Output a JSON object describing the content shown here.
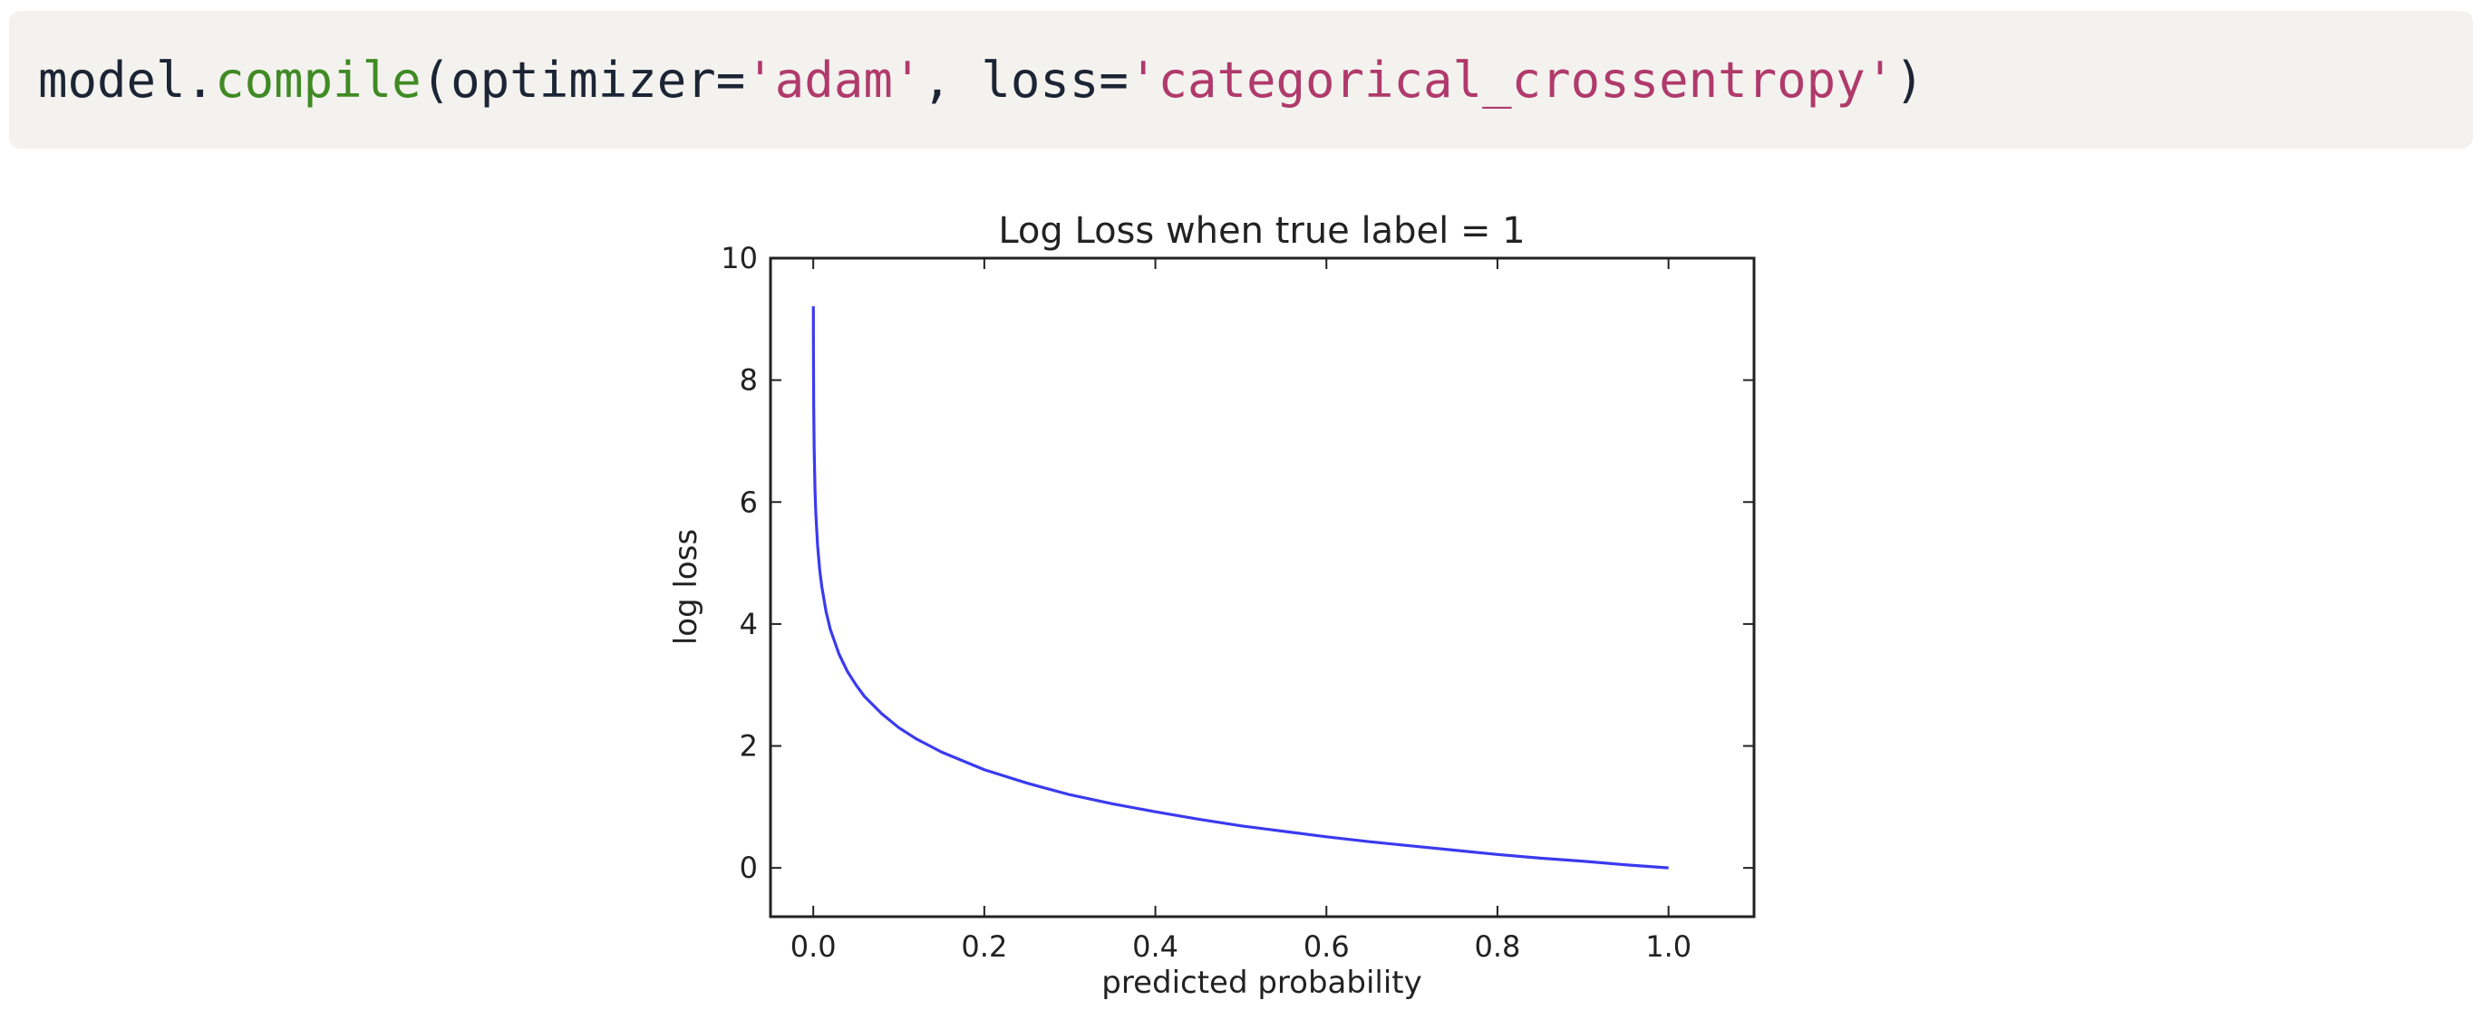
{
  "code": {
    "tokens": [
      {
        "text": "model.",
        "kind": "plain"
      },
      {
        "text": "compile",
        "kind": "fn"
      },
      {
        "text": "(optimizer=",
        "kind": "plain"
      },
      {
        "text": "'adam'",
        "kind": "str"
      },
      {
        "text": ", loss=",
        "kind": "plain"
      },
      {
        "text": "'categorical_crossentropy'",
        "kind": "str"
      },
      {
        "text": ")",
        "kind": "plain"
      }
    ],
    "colors": {
      "plain": "#1b2535",
      "fn": "#3f8a24",
      "str": "#b03a6c",
      "background": "#f4f2ee"
    }
  },
  "chart_data": {
    "type": "line",
    "title": "Log Loss when true label = 1",
    "xlabel": "predicted probability",
    "ylabel": "log loss",
    "xlim": [
      -0.05,
      1.1
    ],
    "ylim": [
      -0.8,
      10
    ],
    "xticks": [
      0.0,
      0.2,
      0.4,
      0.6,
      0.8,
      1.0
    ],
    "xtick_labels": [
      "0.0",
      "0.2",
      "0.4",
      "0.6",
      "0.8",
      "1.0"
    ],
    "yticks": [
      0,
      2,
      4,
      6,
      8,
      10
    ],
    "ytick_labels": [
      "0",
      "2",
      "4",
      "6",
      "8",
      "10"
    ],
    "grid": false,
    "series": [
      {
        "color": "#3a3af0",
        "x": [
          0.0001,
          0.0002,
          0.0005,
          0.001,
          0.002,
          0.003,
          0.005,
          0.0075,
          0.01,
          0.015,
          0.02,
          0.03,
          0.04,
          0.05,
          0.06,
          0.08,
          0.1,
          0.12,
          0.15,
          0.2,
          0.25,
          0.3,
          0.35,
          0.4,
          0.45,
          0.5,
          0.55,
          0.6,
          0.65,
          0.7,
          0.75,
          0.8,
          0.85,
          0.9,
          0.95,
          1.0
        ],
        "y": [
          9.21,
          8.52,
          7.6,
          6.91,
          6.21,
          5.81,
          5.3,
          4.89,
          4.61,
          4.2,
          3.91,
          3.51,
          3.22,
          3.0,
          2.81,
          2.53,
          2.3,
          2.12,
          1.9,
          1.61,
          1.39,
          1.2,
          1.05,
          0.92,
          0.8,
          0.69,
          0.6,
          0.51,
          0.43,
          0.36,
          0.29,
          0.22,
          0.16,
          0.11,
          0.05,
          0.0
        ]
      }
    ]
  }
}
